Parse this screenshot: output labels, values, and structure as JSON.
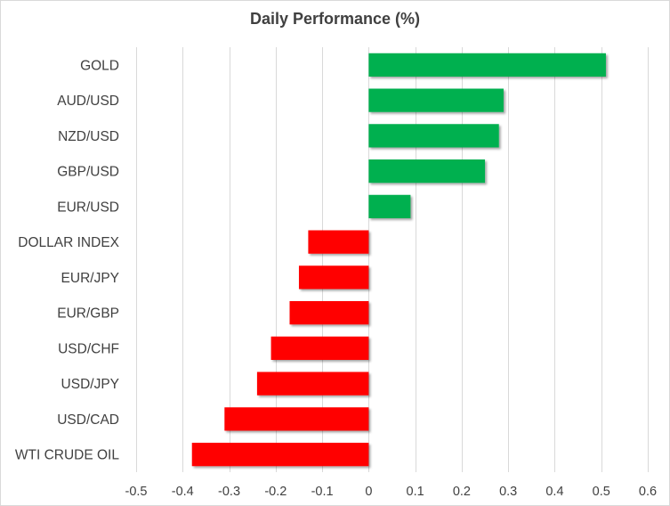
{
  "chart_data": {
    "type": "bar",
    "orientation": "horizontal",
    "title": "Daily Performance  (%)",
    "categories": [
      "GOLD",
      "AUD/USD",
      "NZD/USD",
      "GBP/USD",
      "EUR/USD",
      "DOLLAR INDEX",
      "EUR/JPY",
      "EUR/GBP",
      "USD/CHF",
      "USD/JPY",
      "USD/CAD",
      "WTI CRUDE OIL"
    ],
    "values": [
      0.51,
      0.29,
      0.28,
      0.25,
      0.09,
      -0.13,
      -0.15,
      -0.17,
      -0.21,
      -0.24,
      -0.31,
      -0.38
    ],
    "xlim": [
      -0.5,
      0.6
    ],
    "ticks": [
      -0.5,
      -0.4,
      -0.3,
      -0.2,
      -0.1,
      0,
      0.1,
      0.2,
      0.3,
      0.4,
      0.5,
      0.6
    ],
    "tick_labels": [
      "-0.5",
      "-0.4",
      "-0.3",
      "-0.2",
      "-0.1",
      "0",
      "0.1",
      "0.2",
      "0.3",
      "0.4",
      "0.5",
      "0.6"
    ],
    "grid": true,
    "legend": "none",
    "colors": {
      "positive": "#00b050",
      "negative": "#ff0000",
      "grid": "#d9d9d9",
      "text": "#404040"
    }
  }
}
